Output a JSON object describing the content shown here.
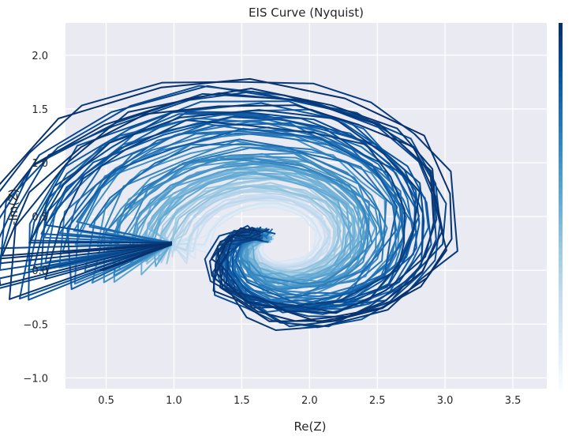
{
  "chart_data": {
    "type": "line",
    "title": "EIS Curve (Nyquist)",
    "xlabel": "Re(Z)",
    "ylabel": "-Im(Z)",
    "xlim": [
      0.2,
      3.75
    ],
    "ylim": [
      -1.1,
      2.3
    ],
    "x_ticks": [
      "0.5",
      "1.0",
      "1.5",
      "2.0",
      "2.5",
      "3.0",
      "3.5"
    ],
    "y_ticks": [
      "−1.0",
      "−0.5",
      "0.0",
      "0.5",
      "1.0",
      "1.5",
      "2.0"
    ],
    "grid": true,
    "legend": "none",
    "colormap": "Blues",
    "colorbar": "right",
    "background_color": "#eaeaf2",
    "grid_color": "#ffffff",
    "curves": {
      "count": 90,
      "start": [
        0.45,
        0.0
      ],
      "center": [
        1.75,
        0.25
      ],
      "tail_start": [
        0.62,
        0.07
      ],
      "tail_end": [
        0.98,
        0.25
      ],
      "r_min": 0.05,
      "r_max": 2.0,
      "loops": 1.15
    }
  }
}
